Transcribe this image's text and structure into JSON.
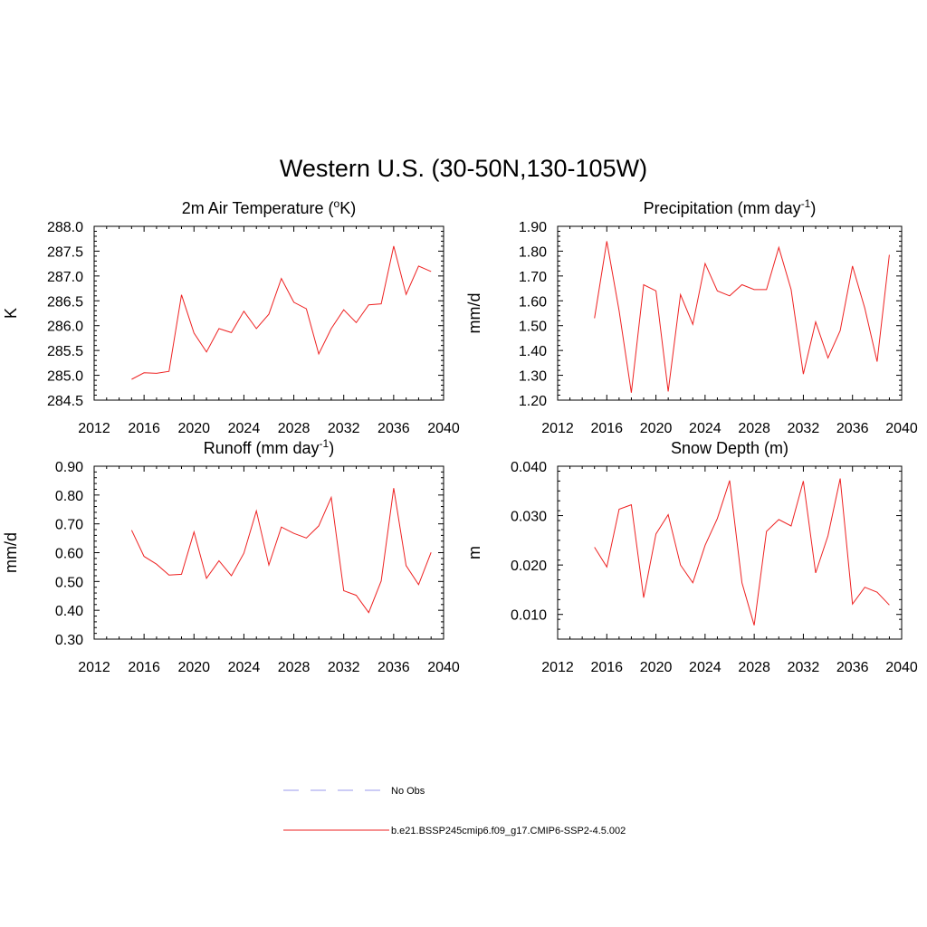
{
  "figure": {
    "title": "Western U.S. (30-50N,130-105W)",
    "legend": [
      {
        "label": "No Obs",
        "color": "#9999ee",
        "dash": true
      },
      {
        "label": "b.e21.BSSP245cmip6.f09_g17.CMIP6-SSP2-4.5.002",
        "color": "#ee2222",
        "dash": false
      }
    ]
  },
  "chart_data": [
    {
      "type": "line",
      "title": "2m Air Temperature (°K)",
      "title_parts": {
        "pre": "2m Air Temperature (",
        "sup": "o",
        "post": "K)"
      },
      "ylabel": "K",
      "xlim": [
        2012,
        2040
      ],
      "ylim": [
        284.5,
        288.0
      ],
      "xticks": [
        2012,
        2016,
        2020,
        2024,
        2028,
        2032,
        2036,
        2040
      ],
      "yticks": [
        "284.5",
        "285.0",
        "285.5",
        "286.0",
        "286.5",
        "287.0",
        "287.5",
        "288.0"
      ],
      "series": [
        {
          "color": "#ee2222",
          "x": [
            2015,
            2016,
            2017,
            2018,
            2019,
            2020,
            2021,
            2022,
            2023,
            2024,
            2025,
            2026,
            2027,
            2028,
            2029,
            2030,
            2031,
            2032,
            2033,
            2034,
            2035,
            2036,
            2037,
            2038,
            2039
          ],
          "values": [
            284.92,
            285.05,
            285.04,
            285.08,
            286.62,
            285.85,
            285.47,
            285.94,
            285.86,
            286.29,
            285.94,
            286.23,
            286.95,
            286.47,
            286.34,
            285.43,
            285.94,
            286.32,
            286.06,
            286.42,
            286.44,
            287.6,
            286.63,
            287.2,
            287.09
          ]
        }
      ]
    },
    {
      "type": "line",
      "title": "Precipitation (mm day-1)",
      "title_parts": {
        "pre": "Precipitation (mm day",
        "sup": "-1",
        "post": ")"
      },
      "ylabel": "mm/d",
      "xlim": [
        2012,
        2040
      ],
      "ylim": [
        1.2,
        1.9
      ],
      "xticks": [
        2012,
        2016,
        2020,
        2024,
        2028,
        2032,
        2036,
        2040
      ],
      "yticks": [
        "1.20",
        "1.30",
        "1.40",
        "1.50",
        "1.60",
        "1.70",
        "1.80",
        "1.90"
      ],
      "series": [
        {
          "color": "#ee2222",
          "x": [
            2015,
            2016,
            2017,
            2018,
            2019,
            2020,
            2021,
            2022,
            2023,
            2024,
            2025,
            2026,
            2027,
            2028,
            2029,
            2030,
            2031,
            2032,
            2033,
            2034,
            2035,
            2036,
            2037,
            2038,
            2039
          ],
          "values": [
            1.53,
            1.84,
            1.56,
            1.23,
            1.665,
            1.64,
            1.235,
            1.625,
            1.505,
            1.75,
            1.64,
            1.62,
            1.665,
            1.645,
            1.645,
            1.815,
            1.645,
            1.305,
            1.515,
            1.37,
            1.48,
            1.74,
            1.57,
            1.355,
            1.785
          ]
        }
      ]
    },
    {
      "type": "line",
      "title": "Runoff (mm day-1)",
      "title_parts": {
        "pre": "Runoff (mm day",
        "sup": "-1",
        "post": ")"
      },
      "ylabel": "mm/d",
      "xlim": [
        2012,
        2040
      ],
      "ylim": [
        0.3,
        0.9
      ],
      "xticks": [
        2012,
        2016,
        2020,
        2024,
        2028,
        2032,
        2036,
        2040
      ],
      "yticks": [
        "0.30",
        "0.40",
        "0.50",
        "0.60",
        "0.70",
        "0.80",
        "0.90"
      ],
      "series": [
        {
          "color": "#ee2222",
          "x": [
            2015,
            2016,
            2017,
            2018,
            2019,
            2020,
            2021,
            2022,
            2023,
            2024,
            2025,
            2026,
            2027,
            2028,
            2029,
            2030,
            2031,
            2032,
            2033,
            2034,
            2035,
            2036,
            2037,
            2038,
            2039
          ],
          "values": [
            0.678,
            0.587,
            0.56,
            0.522,
            0.525,
            0.672,
            0.511,
            0.572,
            0.52,
            0.598,
            0.745,
            0.557,
            0.689,
            0.667,
            0.651,
            0.693,
            0.792,
            0.468,
            0.452,
            0.392,
            0.502,
            0.824,
            0.555,
            0.489,
            0.601
          ]
        }
      ]
    },
    {
      "type": "line",
      "title": "Snow Depth (m)",
      "title_parts": {
        "pre": "Snow Depth (m)",
        "sup": "",
        "post": ""
      },
      "ylabel": "m",
      "xlim": [
        2012,
        2040
      ],
      "ylim": [
        0.005,
        0.04
      ],
      "xticks": [
        2012,
        2016,
        2020,
        2024,
        2028,
        2032,
        2036,
        2040
      ],
      "yticks": [
        "0.010",
        "0.020",
        "0.030",
        "0.040"
      ],
      "ytick_values": [
        0.01,
        0.02,
        0.03,
        0.04
      ],
      "series": [
        {
          "color": "#ee2222",
          "x": [
            2015,
            2016,
            2017,
            2018,
            2019,
            2020,
            2021,
            2022,
            2023,
            2024,
            2025,
            2026,
            2027,
            2028,
            2029,
            2030,
            2031,
            2032,
            2033,
            2034,
            2035,
            2036,
            2037,
            2038,
            2039
          ],
          "values": [
            0.0236,
            0.0196,
            0.0313,
            0.0322,
            0.0134,
            0.0263,
            0.0302,
            0.02,
            0.0164,
            0.024,
            0.0294,
            0.0371,
            0.0164,
            0.0078,
            0.0268,
            0.0292,
            0.0279,
            0.037,
            0.0184,
            0.0259,
            0.0375,
            0.0121,
            0.0155,
            0.0145,
            0.0119
          ]
        }
      ]
    }
  ]
}
